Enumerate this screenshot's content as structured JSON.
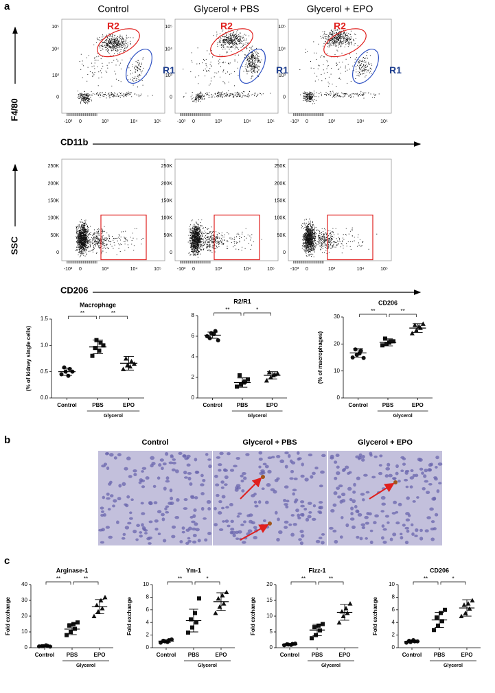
{
  "panels": [
    "a",
    "b",
    "c"
  ],
  "flow": {
    "columns": [
      "Control",
      "Glycerol + PBS",
      "Glycerol + EPO"
    ],
    "row1": {
      "ylabel": "F4/80",
      "xlabel": "CD11b",
      "yticks": [
        "10⁵",
        "10⁴",
        "10³",
        "0"
      ],
      "xticks": [
        "-10³",
        "0",
        "10³",
        "10⁴",
        "10⁵"
      ],
      "gates": [
        "R2",
        "R1"
      ]
    },
    "row2": {
      "ylabel": "SSC",
      "xlabel": "CD206",
      "yticks": [
        "250K",
        "200K",
        "150K",
        "100K",
        "50K",
        "0"
      ],
      "xticks": [
        "-10³",
        "0",
        "10³",
        "10⁴",
        "10⁵"
      ]
    }
  },
  "histology": {
    "titles": [
      "Control",
      "Glycerol + PBS",
      "Glycerol + EPO"
    ]
  },
  "chart_data": [
    {
      "type": "dot",
      "title": "Macrophage",
      "ylabel": "(% of kidney single cells)",
      "categories": [
        "Control",
        "PBS",
        "EPO"
      ],
      "group_label": "Glycerol",
      "significance": [
        "**",
        "**"
      ],
      "ylim": [
        0,
        1.5
      ],
      "yticks": [
        {
          "value": 0,
          "label": "0.0"
        },
        {
          "value": 0.5,
          "label": "0.5"
        },
        {
          "value": 1,
          "label": "1.0"
        },
        {
          "value": 1.5,
          "label": "1.5"
        }
      ],
      "groups": [
        {
          "marker": "circle",
          "values": [
            0.45,
            0.5,
            0.55,
            0.58,
            0.42,
            0.5
          ],
          "mean": 0.5,
          "sd": 0.07
        },
        {
          "marker": "square",
          "values": [
            0.8,
            1.1,
            1.05,
            0.95,
            0.9,
            1.0
          ],
          "mean": 0.97,
          "sd": 0.13
        },
        {
          "marker": "triangle",
          "values": [
            0.55,
            0.62,
            0.7,
            0.75,
            0.6,
            0.65
          ],
          "mean": 0.66,
          "sd": 0.13
        }
      ]
    },
    {
      "type": "dot",
      "title": "R2/R1",
      "categories": [
        "Control",
        "PBS",
        "EPO"
      ],
      "group_label": "Glycerol",
      "significance": [
        "**",
        "*"
      ],
      "ylim": [
        0,
        8
      ],
      "yticks": [
        0,
        2,
        4,
        6,
        8
      ],
      "groups": [
        {
          "marker": "circle",
          "values": [
            6.0,
            6.3,
            6.5,
            5.8,
            6.2,
            5.6
          ],
          "mean": 6.1,
          "sd": 0.3
        },
        {
          "marker": "square",
          "values": [
            1.1,
            1.3,
            1.6,
            2.2,
            1.5,
            1.8
          ],
          "mean": 1.5,
          "sd": 0.45
        },
        {
          "marker": "triangle",
          "values": [
            1.7,
            2.0,
            2.3,
            2.5,
            2.2,
            2.4
          ],
          "mean": 2.2,
          "sd": 0.35
        }
      ]
    },
    {
      "type": "dot",
      "title": "CD206",
      "ylabel": "(% of macrophages)",
      "categories": [
        "Control",
        "PBS",
        "EPO"
      ],
      "group_label": "Glycerol",
      "significance": [
        "**",
        "**"
      ],
      "ylim": [
        0,
        30
      ],
      "yticks": [
        0,
        10,
        20,
        30
      ],
      "groups": [
        {
          "marker": "circle",
          "values": [
            15,
            16,
            17.5,
            18,
            16.5,
            14.8
          ],
          "mean": 16.7,
          "sd": 1.6
        },
        {
          "marker": "square",
          "values": [
            19.5,
            20,
            21,
            22,
            20.5,
            21
          ],
          "mean": 20.6,
          "sd": 1.3
        },
        {
          "marker": "triangle",
          "values": [
            24,
            25,
            26,
            27,
            26.5,
            27.5
          ],
          "mean": 25.9,
          "sd": 1.6
        }
      ]
    },
    {
      "type": "dot",
      "title": "Arginase-1",
      "ylabel": "Fold exchange",
      "categories": [
        "Control",
        "PBS",
        "EPO"
      ],
      "group_label": "Glycerol",
      "significance": [
        "**",
        "**"
      ],
      "ylim": [
        0,
        40
      ],
      "yticks": [
        0,
        10,
        20,
        30,
        40
      ],
      "groups": [
        {
          "marker": "circle",
          "values": [
            0.8,
            1,
            1.2,
            1,
            1.5,
            0.7
          ],
          "mean": 1,
          "sd": 0.3
        },
        {
          "marker": "square",
          "values": [
            8,
            10,
            12,
            14,
            15,
            16
          ],
          "mean": 11.8,
          "sd": 3.5
        },
        {
          "marker": "triangle",
          "values": [
            20,
            23,
            25,
            27,
            30,
            32
          ],
          "mean": 26,
          "sd": 4.5
        }
      ]
    },
    {
      "type": "dot",
      "title": "Ym-1",
      "ylabel": "Fold exchange",
      "categories": [
        "Control",
        "PBS",
        "EPO"
      ],
      "group_label": "Glycerol",
      "significance": [
        "**",
        "*"
      ],
      "ylim": [
        0,
        10
      ],
      "yticks": [
        0,
        2,
        4,
        6,
        8,
        10
      ],
      "groups": [
        {
          "marker": "circle",
          "values": [
            0.8,
            1,
            1.2,
            1.1,
            0.9,
            1.3
          ],
          "mean": 1.05,
          "sd": 0.2
        },
        {
          "marker": "square",
          "values": [
            2.4,
            3.2,
            4,
            4.5,
            5.5,
            7.8
          ],
          "mean": 4.3,
          "sd": 1.8
        },
        {
          "marker": "triangle",
          "values": [
            5.5,
            6.5,
            7,
            7.8,
            8.3,
            8.8
          ],
          "mean": 7.3,
          "sd": 1.4
        }
      ]
    },
    {
      "type": "dot",
      "title": "Fizz-1",
      "ylabel": "Fold exchange",
      "categories": [
        "Control",
        "PBS",
        "EPO"
      ],
      "group_label": "Glycerol",
      "significance": [
        "**",
        "**"
      ],
      "ylim": [
        0,
        20
      ],
      "yticks": [
        0,
        5,
        10,
        15,
        20
      ],
      "groups": [
        {
          "marker": "circle",
          "values": [
            0.8,
            1,
            1.2,
            1.1,
            0.9,
            1.3
          ],
          "mean": 1.05,
          "sd": 0.3
        },
        {
          "marker": "square",
          "values": [
            3,
            4,
            5.5,
            6.5,
            7,
            7.5
          ],
          "mean": 5.6,
          "sd": 1.8
        },
        {
          "marker": "triangle",
          "values": [
            8,
            10,
            11,
            11.5,
            12.5,
            14
          ],
          "mean": 11.2,
          "sd": 2.5
        }
      ]
    },
    {
      "type": "dot",
      "title": "CD206",
      "ylabel": "Fold exchange",
      "categories": [
        "Control",
        "PBS",
        "EPO"
      ],
      "group_label": "Glycerol",
      "significance": [
        "**",
        "*"
      ],
      "ylim": [
        0,
        10
      ],
      "yticks": [
        0,
        2,
        4,
        6,
        8,
        10
      ],
      "groups": [
        {
          "marker": "circle",
          "values": [
            0.8,
            0.9,
            1,
            1.1,
            1.2,
            1
          ],
          "mean": 1,
          "sd": 0.15
        },
        {
          "marker": "square",
          "values": [
            2.8,
            3.5,
            4.2,
            4.8,
            5.5,
            6
          ],
          "mean": 4.4,
          "sd": 1.2
        },
        {
          "marker": "triangle",
          "values": [
            5,
            5.5,
            6.2,
            6.8,
            7,
            7.5
          ],
          "mean": 6.3,
          "sd": 1.3
        }
      ]
    }
  ]
}
